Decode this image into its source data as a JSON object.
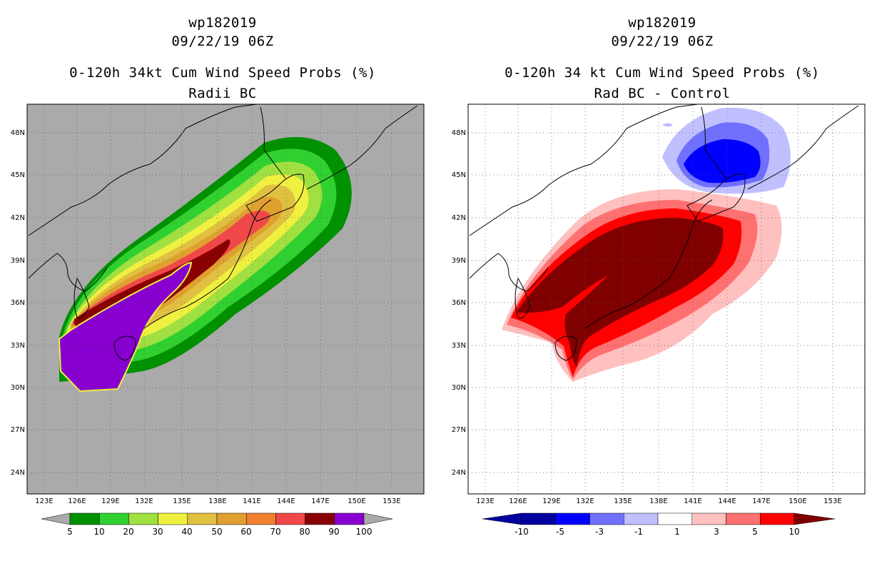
{
  "left": {
    "title_line1": "wp182019",
    "title_line2": "09/22/19 06Z",
    "title_line3": "0-120h 34kt Cum Wind Speed Probs (%)",
    "title_line4": "Radii BC",
    "background_color": "#aaaaaa",
    "lat_labels": [
      "48N",
      "45N",
      "42N",
      "39N",
      "36N",
      "33N",
      "30N",
      "27N",
      "24N"
    ],
    "lon_labels": [
      "123E",
      "126E",
      "129E",
      "132E",
      "135E",
      "138E",
      "141E",
      "144E",
      "147E",
      "150E",
      "153E"
    ],
    "colorbar": {
      "labels": [
        "5",
        "10",
        "20",
        "30",
        "40",
        "50",
        "60",
        "70",
        "80",
        "90",
        "100"
      ],
      "colors": [
        "#009000",
        "#30d030",
        "#a0e040",
        "#f0f040",
        "#e0c040",
        "#e0a030",
        "#f08030",
        "#f04848",
        "#880000",
        "#8800d0"
      ],
      "end_arrow_color": "#aaaaaa"
    }
  },
  "right": {
    "title_line1": "wp182019",
    "title_line2": "09/22/19 06Z",
    "title_line3": "0-120h 34 kt Cum Wind Speed Probs (%)",
    "title_line4": "Rad BC - Control",
    "background_color": "#ffffff",
    "lat_labels": [
      "48N",
      "45N",
      "42N",
      "39N",
      "36N",
      "33N",
      "30N",
      "27N",
      "24N"
    ],
    "lon_labels": [
      "123E",
      "126E",
      "129E",
      "132E",
      "135E",
      "138E",
      "141E",
      "144E",
      "147E",
      "150E",
      "153E"
    ],
    "colorbar": {
      "labels": [
        "-10",
        "-5",
        "-3",
        "-1",
        "1",
        "3",
        "5",
        "10"
      ],
      "colors": [
        "#0000a0",
        "#0000ff",
        "#7070ff",
        "#c0c0ff",
        "#ffffff",
        "#ffc0c0",
        "#ff7070",
        "#ff0000"
      ],
      "left_arrow_color": "#0000a0",
      "right_arrow_color": "#800000"
    }
  }
}
